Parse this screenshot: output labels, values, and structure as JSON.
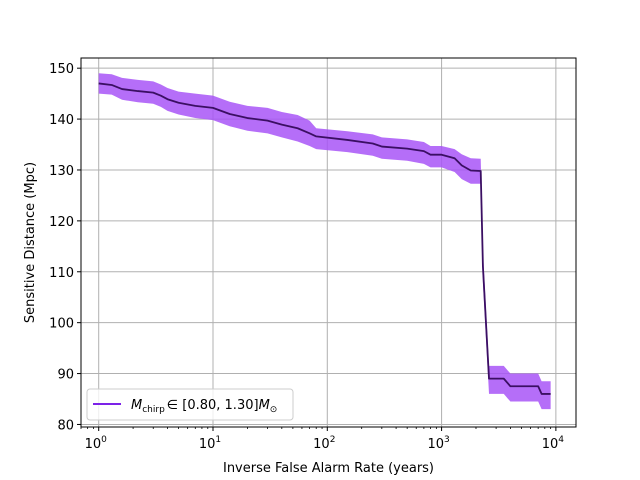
{
  "chart_data": {
    "type": "line",
    "xscale": "log",
    "xlabel": "Inverse False Alarm Rate (years)",
    "ylabel": "Sensitive Distance (Mpc)",
    "xlim": [
      0.7,
      15000
    ],
    "ylim": [
      79.5,
      152
    ],
    "grid": true,
    "legend_position": "lower-left",
    "x_ticks": [
      1,
      10,
      100,
      1000,
      10000
    ],
    "x_tick_bases": [
      "10",
      "10",
      "10",
      "10",
      "10"
    ],
    "x_tick_exponents": [
      "0",
      "1",
      "2",
      "3",
      "4"
    ],
    "y_ticks": [
      "80",
      "90",
      "100",
      "110",
      "120",
      "130",
      "140",
      "150"
    ],
    "colors": {
      "line": "#3b0f63",
      "band": "#a855f7",
      "legend_line": "#7c22e8",
      "grid": "#b0b0b0"
    },
    "series": [
      {
        "name": "M_chirp ∈ [0.80, 1.30] M_⊙",
        "name_parts": {
          "symbol": "M",
          "subscript": "chirp",
          "range": "∈ [0.80, 1.30]",
          "unit": "M",
          "unit_subscript": "⊙"
        },
        "x": [
          1,
          1.3,
          1.6,
          2.2,
          3,
          3.5,
          4,
          5,
          7,
          10,
          14,
          20,
          30,
          40,
          55,
          70,
          80,
          150,
          250,
          300,
          500,
          700,
          800,
          1000,
          1300,
          1500,
          1800,
          2200,
          2300,
          2600,
          3500,
          4000,
          7000,
          7500,
          9000
        ],
        "y": [
          147,
          146.7,
          145.9,
          145.5,
          145.2,
          144.6,
          143.9,
          143.2,
          142.6,
          142.2,
          141,
          140.2,
          139.7,
          138.9,
          138.2,
          137.2,
          136.6,
          135.9,
          135.2,
          134.6,
          134.2,
          133.7,
          133,
          133,
          132.3,
          130.9,
          129.9,
          129.8,
          111,
          89,
          89,
          87.5,
          87.5,
          86,
          86
        ],
        "lower": [
          145,
          144.8,
          143.8,
          143.3,
          143,
          142.4,
          141.6,
          140.9,
          140.2,
          139.8,
          138.6,
          137.7,
          137.2,
          136.4,
          135.6,
          134.7,
          134.1,
          133.5,
          132.8,
          132.2,
          131.8,
          131.2,
          130.5,
          130.5,
          129.6,
          128.2,
          127.3,
          127.3,
          108,
          86,
          86,
          84.5,
          84.5,
          83,
          83
        ],
        "upper": [
          149,
          148.8,
          148.1,
          147.7,
          147.4,
          146.8,
          146.1,
          145.4,
          145,
          144.6,
          143.4,
          142.6,
          142.2,
          141.4,
          140.8,
          139.7,
          138.2,
          137.6,
          137,
          136.4,
          136,
          135.5,
          134.7,
          134.7,
          134.1,
          133.1,
          132.3,
          132.2,
          114,
          91.5,
          91.5,
          90,
          90,
          88.5,
          88.5
        ]
      }
    ]
  }
}
